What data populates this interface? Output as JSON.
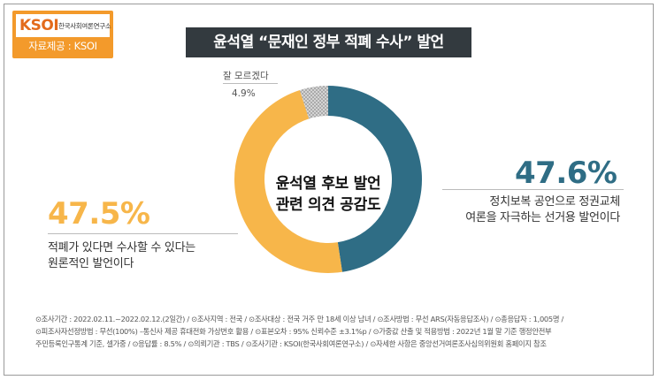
{
  "logo": {
    "mark": "KSOI",
    "org_name": "한국사회여론연구소",
    "source": "자료제공 : KSOI"
  },
  "title": "윤석열 “문재인 정부 적폐 수사” 발언",
  "chart_data": {
    "type": "pie",
    "donut": true,
    "center_label_lines": [
      "윤석열 후보 발언",
      "관련 의견 공감도"
    ],
    "slices": [
      {
        "label": "정치보복 공언으로 정권교체 여론을 자극하는 선거용 발언이다",
        "value": 47.6,
        "display": "47.6%",
        "color": "#2f6d85"
      },
      {
        "label": "적폐가 있다면 수사할 수 있다는 원론적인 발언이다",
        "value": 47.5,
        "display": "47.5%",
        "color": "#f7b64a"
      },
      {
        "label": "잘 모르겠다",
        "value": 4.9,
        "display": "4.9%",
        "color": "#c8c8c8"
      }
    ]
  },
  "annotations": {
    "right_desc_lines": [
      "정치보복 공언으로 정권교체",
      "여론을 자극하는 선거용 발언이다"
    ],
    "left_desc_lines": [
      "적폐가 있다면 수사할 수 있다는",
      "원론적인 발언이다"
    ],
    "dont_know_label": "잘 모르겠다"
  },
  "footer_lines": [
    "⊙조사기간 : 2022.02.11.~2022.02.12.(2일간)  /  ⊙조사지역 : 전국  /  ⊙조사대상 : 전국 거주 만 18세 이상 남녀  /  ⊙조사방법 : 무선 ARS(자동응답조사)  /  ⊙총응답자 : 1,005명  /",
    "⊙피조사자선정방법 : 무선(100%) –통신사 제공 휴대전화 가상번호 활용  /  ⊙표본오차 : 95% 신뢰수준 ±3.1%p  /  ⊙가중값 산출 및 적용방법 : 2022년 1월 말 기준 행정안전부",
    "주민등록인구통계 기준, 셀가중  /  ⊙응답률 : 8.5%  /  ⊙의뢰기관 : TBS  /  ⊙조사기관 : KSOI(한국사회여론연구소)  /  ⊙자세한 사항은 중앙선거여론조사심의위원회 홈페이지 참조"
  ]
}
